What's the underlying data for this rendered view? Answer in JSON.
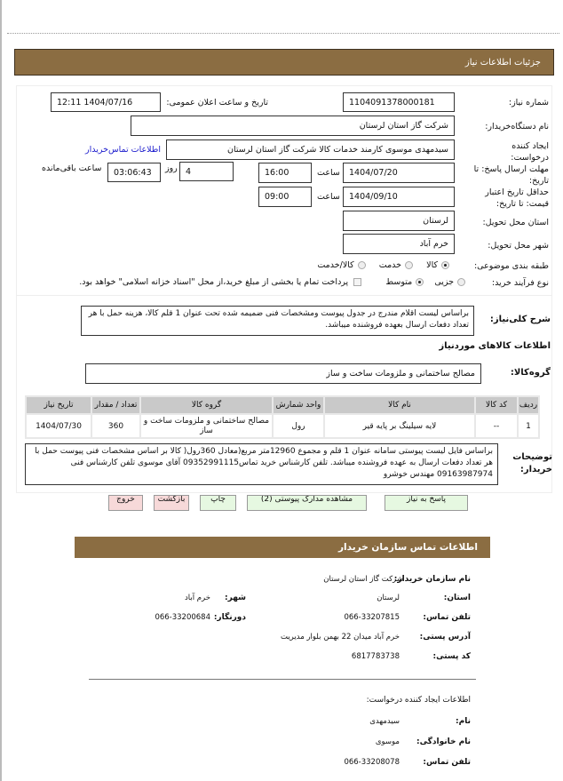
{
  "header": {
    "title": "جزئیات اطلاعات نیاز"
  },
  "form": {
    "need_number_label": "شماره نیاز:",
    "need_number": "1104091378000181",
    "announce_label": "تاریخ و ساعت اعلان عمومی:",
    "announce_value": "1404/07/16 12:11",
    "buyer_label": "نام دستگاه‌خریدار:",
    "buyer": "شرکت گاز استان لرستان",
    "creator_label": "ایجاد کننده درخواست:",
    "creator": "سیدمهدی موسوی کارمند خدمات کالا شرکت گاز استان لرستان",
    "contact_link": "اطلاعات تماس‌خریدار",
    "deadline_label": "مهلت ارسال پاسخ: تا تاریخ:",
    "deadline_date": "1404/07/20",
    "time_label": "ساعت",
    "deadline_time": "16:00",
    "days": "4",
    "days_label": "روز",
    "remaining": "03:06:43",
    "remaining_label": "ساعت باقی‌مانده",
    "validity_label": "حداقل تاریخ اعتبار قیمت: تا تاریخ:",
    "validity_date": "1404/09/10",
    "validity_time": "09:00",
    "province_label": "استان محل تحویل:",
    "province": "لرستان",
    "city_label": "شهر محل تحویل:",
    "city": "خرم آباد",
    "category_label": "طبقه بندی موضوعی:",
    "category_options": [
      "کالا",
      "خدمت",
      "کالا/خدمت"
    ],
    "category_selected": "کالا",
    "process_label": "نوع فرآیند خرید:",
    "process_options": [
      "جزیی",
      "متوسط"
    ],
    "process_selected": "متوسط",
    "treasury_text": "پرداخت تمام یا بخشی از مبلغ خرید،از محل \"اسناد خزانه اسلامی\" خواهد بود.",
    "treasury_checked": false
  },
  "summary": {
    "label": "شرح کلی‌نیاز:",
    "text": "براساس لیست اقلام مندرج در جدول پیوست ومشخصات فنی ضمیمه شده تحت عنوان 1 قلم کالا، هزینه حمل با هر تعداد دفعات ارسال بعهده فروشنده میباشد."
  },
  "goods": {
    "title": "اطلاعات کالاهای موردنیاز",
    "group_label": "گروه‌کالا:",
    "group": "مصالح ساختمانی و ملزومات ساخت و ساز",
    "columns": [
      "ردیف",
      "کد کالا",
      "نام کالا",
      "واحد شمارش",
      "گروه کالا",
      "تعداد / مقدار",
      "تاریخ نیاز"
    ],
    "rows": [
      [
        "1",
        "--",
        "لایه سیلینگ بر پایه قیر",
        "رول",
        "مصالح ساختمانی و ملزومات ساخت و ساز",
        "360",
        "1404/07/30"
      ]
    ]
  },
  "notes": {
    "label": "توضیحات خریدار:",
    "text": "براساس فایل لیست پیوستی سامانه عنوان 1 قلم و مجموع 12960متر مربع(معادل 360رول( کالا بر اساس مشخصات فنی پیوست حمل با هر تعداد دفعات ارسال به عهده فروشنده میباشد. تلفن کارشناس خرید تماس09352991115 آقای موسوی تلفن کارشناس فنی 09163987974 مهندس خوشرو"
  },
  "buttons": {
    "respond": "پاسخ به نیاز",
    "attachments": "مشاهده مدارک پیوستی (2)",
    "print": "چاپ",
    "back": "بازگشت",
    "exit": "خروج"
  },
  "contact": {
    "title": "اطلاعات تماس سازمان خریدار",
    "org_label": "نام سازمان خریدار:",
    "org": "شرکت گاز استان لرستان",
    "province_label": "استان:",
    "province": "لرستان",
    "city_label": "شهر:",
    "city": "خرم آباد",
    "phone_label": "تلفن تماس:",
    "phone": "066-33207815",
    "fax_label": "دورنگار:",
    "fax": "066-33200684",
    "address_label": "آدرس پستی:",
    "address": "خرم آباد میدان 22 بهمن بلوار مدیریت",
    "postal_label": "کد پستی:",
    "postal": "6817783738"
  },
  "requester": {
    "title": "اطلاعات ایجاد کننده درخواست:",
    "name_label": "نام:",
    "name": "سیدمهدی",
    "family_label": "نام خانوادگی:",
    "family": "موسوی",
    "phone_label": "تلفن تماس:",
    "phone": "066-33208078"
  },
  "colors": {
    "header": "#8B6D42",
    "button_green": "#e6f8e1",
    "button_pink": "#f7d9d9"
  }
}
